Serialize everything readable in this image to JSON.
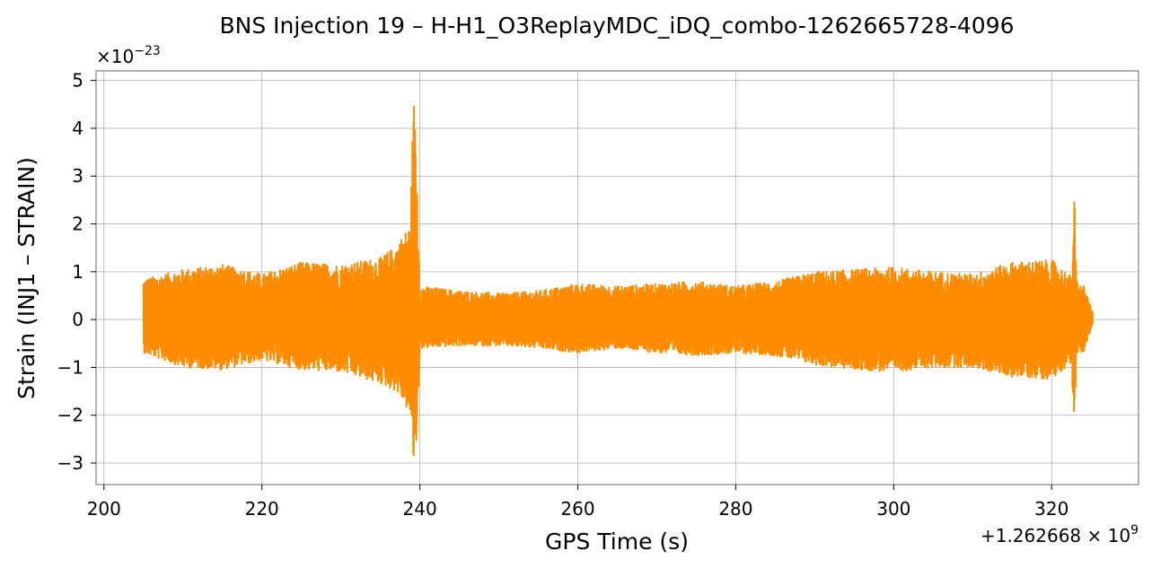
{
  "chart_data": {
    "type": "line",
    "title": "BNS Injection 19 – H-H1_O3ReplayMDC_iDQ_combo-1262665728-4096",
    "xlabel": "GPS Time (s)",
    "ylabel": "Strain (INJ1 – STRAIN)",
    "x_offset_label": "+1.262668 × 10",
    "x_offset_exponent": "9",
    "y_multiplier_label": "×10",
    "y_multiplier_exponent": "−23",
    "xlim": [
      199,
      331
    ],
    "ylim": [
      -3.45,
      5.2
    ],
    "grid": true,
    "x_ticks": [
      200,
      220,
      240,
      260,
      280,
      300,
      320
    ],
    "x_tick_labels": [
      "200",
      "220",
      "240",
      "260",
      "280",
      "300",
      "320"
    ],
    "y_ticks": [
      -3,
      -2,
      -1,
      0,
      1,
      2,
      3,
      4,
      5
    ],
    "y_tick_labels": [
      "−3",
      "−2",
      "−1",
      "0",
      "1",
      "2",
      "3",
      "4",
      "5"
    ],
    "series": [
      {
        "color": "#ff8c00",
        "x_range": [
          205,
          325.2
        ],
        "envelope": {
          "x": [
            205,
            210,
            215,
            220,
            225,
            230,
            235,
            237,
            238,
            238.8,
            239.2,
            239.6,
            240,
            245,
            250,
            255,
            260,
            265,
            270,
            275,
            280,
            285,
            290,
            295,
            300,
            305,
            310,
            315,
            320,
            322.5,
            322.9,
            323.1,
            323.4,
            324,
            325.2
          ],
          "upper": [
            0.85,
            1.05,
            1.15,
            0.95,
            1.2,
            1.15,
            1.3,
            1.55,
            1.8,
            2.0,
            4.8,
            3.3,
            0.7,
            0.6,
            0.55,
            0.6,
            0.75,
            0.7,
            0.75,
            0.8,
            0.7,
            0.8,
            1.0,
            1.05,
            1.1,
            1.0,
            0.95,
            1.2,
            1.25,
            0.9,
            2.65,
            0.9,
            0.7,
            0.75,
            0.15
          ],
          "lower": [
            -0.7,
            -1.0,
            -1.05,
            -0.85,
            -1.05,
            -1.1,
            -1.35,
            -1.5,
            -1.75,
            -2.05,
            -3.05,
            -2.6,
            -0.6,
            -0.55,
            -0.55,
            -0.6,
            -0.7,
            -0.6,
            -0.7,
            -0.75,
            -0.7,
            -0.75,
            -0.95,
            -1.05,
            -1.1,
            -1.0,
            -1.0,
            -1.2,
            -1.25,
            -0.9,
            -2.6,
            -0.85,
            -0.7,
            -0.7,
            -0.1
          ]
        }
      }
    ]
  }
}
